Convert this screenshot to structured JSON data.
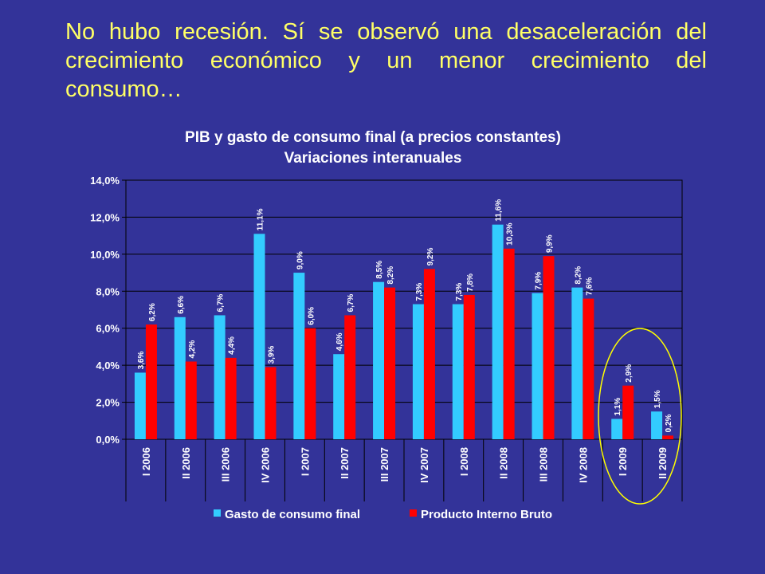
{
  "slide": {
    "headline": "No hubo recesión. Sí se observó una desaceleración del crecimiento económico y un menor crecimiento del consumo…"
  },
  "colors": {
    "background": "#333399",
    "headline": "#ffff66",
    "series_consumo": "#33ccff",
    "series_pib": "#ff0000",
    "highlight_ellipse": "#ffff00"
  },
  "chart_data": {
    "type": "bar",
    "title": "PIB y gasto de consumo final (a precios constantes)",
    "subtitle": "Variaciones interanuales",
    "categories": [
      "I 2006",
      "II 2006",
      "III 2006",
      "IV 2006",
      "I 2007",
      "II 2007",
      "III 2007",
      "IV 2007",
      "I 2008",
      "II 2008",
      "III 2008",
      "IV 2008",
      "I 2009",
      "II 2009"
    ],
    "series": [
      {
        "name": "Gasto de consumo final",
        "values": [
          3.6,
          6.6,
          6.7,
          11.1,
          9.0,
          4.6,
          8.5,
          7.3,
          7.3,
          11.6,
          7.9,
          8.2,
          1.1,
          1.5
        ],
        "labels": [
          "3,6%",
          "6,6%",
          "6,7%",
          "11,1%",
          "9,0%",
          "4,6%",
          "8,5%",
          "7,3%",
          "7,3%",
          "11,6%",
          "7,9%",
          "8,2%",
          "1,1%",
          "1,5%"
        ]
      },
      {
        "name": "Producto Interno Bruto",
        "values": [
          6.2,
          4.2,
          4.4,
          3.9,
          6.0,
          6.7,
          8.2,
          9.2,
          7.8,
          10.3,
          9.9,
          7.6,
          2.9,
          0.2
        ],
        "labels": [
          "6,2%",
          "4,2%",
          "4,4%",
          "3,9%",
          "6,0%",
          "6,7%",
          "8,2%",
          "9,2%",
          "7,8%",
          "10,3%",
          "9,9%",
          "7,6%",
          "2,9%",
          "0,2%"
        ]
      }
    ],
    "ylim": [
      0,
      14
    ],
    "yticks": [
      "0,0%",
      "2,0%",
      "4,0%",
      "6,0%",
      "8,0%",
      "10,0%",
      "12,0%",
      "14,0%"
    ],
    "grid": true,
    "legend_position": "bottom",
    "highlighted_categories": [
      "I 2009",
      "II 2009"
    ]
  }
}
